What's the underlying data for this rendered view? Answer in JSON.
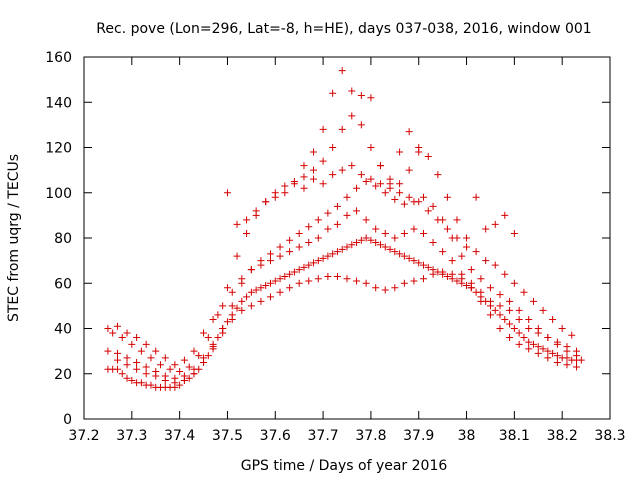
{
  "chart_data": {
    "type": "scatter",
    "title": "Rec. pove (Lon=296, Lat=-8, h=HE), days 037-038, 2016, window 001",
    "xlabel": "GPS time / Days of year 2016",
    "ylabel": "STEC from uqrg / TECUs",
    "xlim": [
      37.2,
      38.3
    ],
    "ylim": [
      0,
      160
    ],
    "xticks": [
      37.2,
      37.3,
      37.4,
      37.5,
      37.6,
      37.7,
      37.8,
      37.9,
      38,
      38.1,
      38.2,
      38.3
    ],
    "xtick_labels": [
      "37.2",
      "37.3",
      "37.4",
      "37.5",
      "37.6",
      "37.7",
      "37.8",
      "37.9",
      "38",
      "38.1",
      "38.2",
      "38.3"
    ],
    "yticks": [
      0,
      20,
      40,
      60,
      80,
      100,
      120,
      140,
      160
    ],
    "ytick_labels": [
      "0",
      "20",
      "40",
      "60",
      "80",
      "100",
      "120",
      "140",
      "160"
    ],
    "grid": false,
    "marker": "+",
    "color": "#d40000",
    "series": [
      {
        "x": [
          37.25,
          37.26,
          37.27,
          37.28,
          37.29,
          37.3,
          37.31,
          37.32,
          37.33,
          37.34,
          37.35,
          37.36,
          37.37,
          37.38,
          37.39,
          37.4,
          37.41,
          37.42,
          37.43,
          37.44,
          37.45,
          37.46,
          37.47,
          37.48,
          37.49,
          37.5,
          37.51,
          37.52,
          37.53,
          37.54,
          37.55,
          37.56,
          37.57,
          37.58,
          37.59,
          37.6,
          37.61,
          37.62,
          37.63,
          37.64,
          37.65,
          37.66,
          37.67,
          37.68,
          37.69,
          37.7,
          37.71,
          37.72,
          37.73,
          37.74,
          37.75,
          37.76,
          37.77,
          37.78,
          37.79,
          37.8,
          37.81,
          37.82,
          37.83,
          37.84,
          37.85,
          37.86,
          37.87,
          37.88,
          37.89,
          37.9,
          37.91,
          37.92,
          37.93,
          37.94,
          37.95,
          37.96,
          37.97,
          37.98,
          37.99,
          38.0,
          38.01,
          38.02,
          38.03,
          38.04,
          38.05,
          38.06,
          38.07,
          38.08,
          38.09,
          38.1,
          38.11,
          38.12,
          38.13,
          38.14,
          38.15,
          38.16,
          38.17,
          38.18,
          38.19,
          38.2,
          38.21,
          38.22,
          38.23,
          38.24
        ],
        "y": [
          22,
          22,
          22,
          20,
          18,
          17,
          16,
          16,
          15,
          15,
          14,
          14,
          14,
          14,
          14,
          15,
          17,
          18,
          20,
          22,
          25,
          28,
          32,
          36,
          40,
          43,
          46,
          49,
          52,
          54,
          56,
          57,
          58,
          59,
          60,
          61,
          62,
          63,
          64,
          65,
          66,
          67,
          68,
          69,
          70,
          71,
          72,
          73,
          74,
          75,
          76,
          77,
          78,
          79,
          80,
          79,
          78,
          77,
          76,
          75,
          74,
          73,
          72,
          71,
          70,
          69,
          68,
          67,
          66,
          65,
          64,
          63,
          62,
          61,
          60,
          59,
          58,
          56,
          54,
          52,
          50,
          48,
          46,
          44,
          42,
          40,
          38,
          36,
          34,
          33,
          32,
          31,
          30,
          29,
          28,
          27,
          27,
          26,
          26,
          26
        ]
      },
      {
        "x": [
          37.25,
          37.27,
          37.29,
          37.31,
          37.33,
          37.35,
          37.37,
          37.39,
          37.41,
          37.43,
          37.45,
          37.47,
          37.49,
          37.51,
          37.53,
          37.55,
          37.57,
          37.59,
          37.61,
          37.63,
          37.65,
          37.67,
          37.69,
          37.71,
          37.73,
          37.75,
          37.77,
          37.79,
          37.81,
          37.83,
          37.85,
          37.87,
          37.89,
          37.91,
          37.93,
          37.95,
          37.97,
          37.99,
          38.01,
          38.03,
          38.05,
          38.07,
          38.09,
          38.11,
          38.13,
          38.15,
          38.17,
          38.19,
          38.21,
          38.23
        ],
        "y": [
          30,
          29,
          27,
          25,
          23,
          21,
          19,
          18,
          19,
          22,
          27,
          33,
          40,
          50,
          60,
          66,
          70,
          73,
          76,
          79,
          82,
          85,
          88,
          91,
          94,
          98,
          102,
          105,
          103,
          100,
          97,
          95,
          96,
          98,
          94,
          88,
          80,
          72,
          66,
          62,
          58,
          55,
          52,
          48,
          44,
          40,
          36,
          33,
          30,
          28
        ]
      },
      {
        "x": [
          37.26,
          37.28,
          37.3,
          37.32,
          37.34,
          37.36,
          37.38,
          37.4,
          37.42,
          37.44,
          37.46,
          37.48,
          37.5,
          37.52,
          37.54,
          37.56,
          37.58,
          37.6,
          37.62,
          37.64,
          37.66,
          37.68,
          37.7,
          37.72,
          37.74,
          37.76,
          37.78,
          37.8,
          37.82,
          37.84,
          37.86,
          37.88,
          37.9,
          37.92,
          37.94,
          37.96,
          37.98,
          38.0,
          38.02,
          38.04,
          38.06,
          38.08,
          38.1,
          38.12,
          38.14,
          38.16,
          38.18,
          38.2,
          38.22
        ],
        "y": [
          38,
          36,
          33,
          30,
          27,
          24,
          22,
          21,
          23,
          28,
          36,
          46,
          58,
          72,
          82,
          90,
          96,
          100,
          103,
          105,
          107,
          110,
          114,
          120,
          128,
          134,
          130,
          120,
          112,
          106,
          104,
          110,
          118,
          116,
          108,
          98,
          88,
          80,
          74,
          70,
          68,
          64,
          60,
          56,
          52,
          48,
          44,
          40,
          37
        ]
      },
      {
        "x": [
          37.66,
          37.68,
          37.7,
          37.72,
          37.74,
          37.76,
          37.78,
          37.8,
          37.82,
          37.84,
          37.86,
          37.88,
          37.9
        ],
        "y": [
          112,
          118,
          128,
          144,
          154,
          145,
          143,
          142,
          112,
          104,
          118,
          127,
          120
        ]
      },
      {
        "x": [
          37.27,
          37.29,
          37.31,
          37.33,
          37.35,
          37.37,
          37.39,
          37.41,
          37.43,
          37.45,
          37.47,
          37.49,
          37.51,
          37.53,
          37.55,
          37.57,
          37.59,
          37.61,
          37.63,
          37.65,
          37.67,
          37.69,
          37.71,
          37.73,
          37.75,
          37.77,
          37.79,
          37.81,
          37.83,
          37.85,
          37.87,
          37.89,
          37.91,
          37.93,
          37.95,
          37.97,
          37.99,
          38.01,
          38.03,
          38.05,
          38.07,
          38.09,
          38.11,
          38.13,
          38.15,
          38.17,
          38.19,
          38.21,
          38.23
        ],
        "y": [
          26,
          24,
          22,
          20,
          19,
          17,
          16,
          17,
          20,
          25,
          31,
          38,
          44,
          48,
          50,
          52,
          54,
          56,
          58,
          60,
          61,
          62,
          63,
          63,
          62,
          61,
          60,
          58,
          57,
          58,
          60,
          61,
          62,
          64,
          65,
          64,
          62,
          58,
          52,
          46,
          40,
          36,
          33,
          31,
          29,
          27,
          25,
          24,
          23
        ]
      },
      {
        "x": [
          37.25,
          37.27,
          37.29,
          37.31,
          37.33,
          37.35,
          37.37,
          37.39,
          37.41,
          37.43,
          37.45,
          37.47,
          37.49,
          37.51,
          37.53,
          37.55,
          37.57,
          37.59,
          37.61,
          37.63,
          37.65,
          37.67,
          37.69,
          37.71,
          37.73,
          37.75,
          37.77,
          37.79,
          37.81,
          37.83,
          37.85,
          37.87,
          37.89,
          37.91,
          37.93,
          37.95,
          37.97,
          37.99,
          38.01,
          38.03,
          38.05,
          38.07,
          38.09,
          38.11,
          38.13,
          38.15,
          38.17,
          38.19,
          38.21,
          38.23
        ],
        "y": [
          40,
          41,
          38,
          36,
          33,
          30,
          27,
          24,
          26,
          30,
          38,
          44,
          50,
          56,
          62,
          66,
          68,
          70,
          72,
          74,
          76,
          78,
          80,
          84,
          86,
          90,
          92,
          88,
          84,
          82,
          80,
          82,
          84,
          82,
          78,
          74,
          70,
          64,
          60,
          56,
          52,
          50,
          48,
          44,
          40,
          38,
          36,
          34,
          32,
          30
        ]
      },
      {
        "x": [
          37.5,
          37.52,
          37.54,
          37.56,
          37.58,
          37.6,
          37.62,
          37.64,
          37.66,
          37.68,
          37.7,
          37.72,
          37.74,
          37.76,
          37.78,
          37.8,
          37.82,
          37.84,
          37.86,
          37.88,
          37.9,
          37.92,
          37.94,
          37.96,
          37.98,
          38.0,
          38.02,
          38.04,
          38.06,
          38.08,
          38.1
        ],
        "y": [
          100,
          86,
          88,
          92,
          96,
          98,
          100,
          104,
          102,
          106,
          104,
          108,
          110,
          112,
          108,
          106,
          104,
          102,
          100,
          98,
          96,
          92,
          88,
          84,
          80,
          76,
          98,
          84,
          86,
          90,
          82
        ]
      }
    ]
  }
}
